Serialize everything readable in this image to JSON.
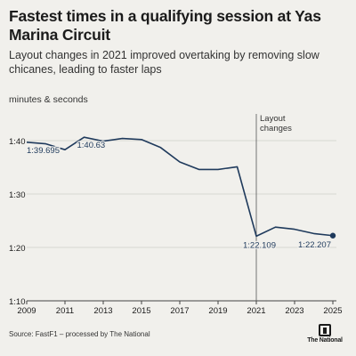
{
  "chart_data": {
    "type": "line",
    "title": "Fastest times in a qualifying session at Yas Marina Circuit",
    "subtitle": "Layout changes in 2021 improved overtaking by removing slow chicanes, leading to faster laps",
    "ylabel": "minutes & seconds",
    "xlabel": "",
    "x": [
      2009,
      2010,
      2011,
      2012,
      2013,
      2014,
      2015,
      2016,
      2017,
      2018,
      2019,
      2020,
      2021,
      2022,
      2023,
      2024,
      2025
    ],
    "y": [
      99.695,
      99.4,
      98.3,
      100.63,
      99.9,
      100.4,
      100.2,
      98.7,
      96.0,
      94.6,
      94.6,
      95.1,
      82.109,
      83.8,
      83.4,
      82.6,
      82.207
    ],
    "xlim": [
      2009,
      2025
    ],
    "ylim": [
      70,
      105
    ],
    "x_ticks": [
      "2009",
      "2011",
      "2013",
      "2015",
      "2017",
      "2019",
      "2021",
      "2023",
      "2025"
    ],
    "y_ticks": [
      {
        "value": 70,
        "label": "1:10"
      },
      {
        "value": 80,
        "label": "1:20"
      },
      {
        "value": 90,
        "label": "1:30"
      },
      {
        "value": 100,
        "label": "1:40"
      }
    ],
    "grid": true,
    "annotations": [
      {
        "x": 2009,
        "y": 99.695,
        "label": "1:39.695"
      },
      {
        "x": 2012,
        "y": 100.63,
        "label": "1:40.63"
      },
      {
        "x": 2021,
        "y": 82.109,
        "label": "1:22.109"
      },
      {
        "x": 2025,
        "y": 82.207,
        "label": "1:22.207"
      }
    ],
    "reference_line": {
      "x": 2021,
      "label_lines": [
        "Layout",
        "changes"
      ]
    },
    "colors": {
      "line": "#1f3a5c",
      "grid": "#cfcfca",
      "axis": "#444444",
      "text": "#1b1b1b"
    }
  },
  "source": "Source: FastF1 – processed by The National",
  "logo_text": "The National"
}
